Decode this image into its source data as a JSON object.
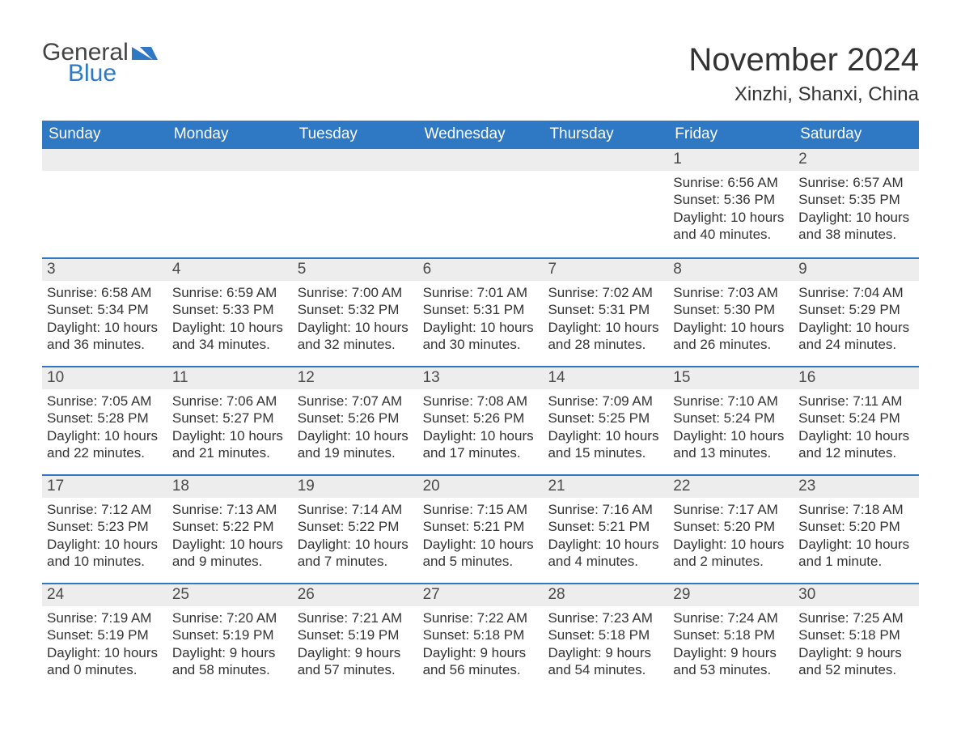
{
  "brand": {
    "general": "General",
    "blue": "Blue",
    "logo_color": "#2f78c4"
  },
  "title": "November 2024",
  "location": "Xinzhi, Shanxi, China",
  "colors": {
    "header_bg": "#2f78c4",
    "header_text": "#ffffff",
    "daynum_bg": "#ededed",
    "daynum_text": "#4a4a4a",
    "body_text": "#333333",
    "week_divider": "#2f78c4",
    "page_bg": "#ffffff"
  },
  "typography": {
    "title_fontsize": 40,
    "location_fontsize": 24,
    "weekday_fontsize": 19,
    "daynum_fontsize": 19,
    "body_fontsize": 17,
    "font_family": "Arial"
  },
  "layout": {
    "columns": 7,
    "rows": 5,
    "first_weekday_index": 5,
    "days_in_month": 30
  },
  "weekdays": [
    "Sunday",
    "Monday",
    "Tuesday",
    "Wednesday",
    "Thursday",
    "Friday",
    "Saturday"
  ],
  "days": [
    {
      "n": 1,
      "sunrise": "6:56 AM",
      "sunset": "5:36 PM",
      "daylight": "10 hours and 40 minutes."
    },
    {
      "n": 2,
      "sunrise": "6:57 AM",
      "sunset": "5:35 PM",
      "daylight": "10 hours and 38 minutes."
    },
    {
      "n": 3,
      "sunrise": "6:58 AM",
      "sunset": "5:34 PM",
      "daylight": "10 hours and 36 minutes."
    },
    {
      "n": 4,
      "sunrise": "6:59 AM",
      "sunset": "5:33 PM",
      "daylight": "10 hours and 34 minutes."
    },
    {
      "n": 5,
      "sunrise": "7:00 AM",
      "sunset": "5:32 PM",
      "daylight": "10 hours and 32 minutes."
    },
    {
      "n": 6,
      "sunrise": "7:01 AM",
      "sunset": "5:31 PM",
      "daylight": "10 hours and 30 minutes."
    },
    {
      "n": 7,
      "sunrise": "7:02 AM",
      "sunset": "5:31 PM",
      "daylight": "10 hours and 28 minutes."
    },
    {
      "n": 8,
      "sunrise": "7:03 AM",
      "sunset": "5:30 PM",
      "daylight": "10 hours and 26 minutes."
    },
    {
      "n": 9,
      "sunrise": "7:04 AM",
      "sunset": "5:29 PM",
      "daylight": "10 hours and 24 minutes."
    },
    {
      "n": 10,
      "sunrise": "7:05 AM",
      "sunset": "5:28 PM",
      "daylight": "10 hours and 22 minutes."
    },
    {
      "n": 11,
      "sunrise": "7:06 AM",
      "sunset": "5:27 PM",
      "daylight": "10 hours and 21 minutes."
    },
    {
      "n": 12,
      "sunrise": "7:07 AM",
      "sunset": "5:26 PM",
      "daylight": "10 hours and 19 minutes."
    },
    {
      "n": 13,
      "sunrise": "7:08 AM",
      "sunset": "5:26 PM",
      "daylight": "10 hours and 17 minutes."
    },
    {
      "n": 14,
      "sunrise": "7:09 AM",
      "sunset": "5:25 PM",
      "daylight": "10 hours and 15 minutes."
    },
    {
      "n": 15,
      "sunrise": "7:10 AM",
      "sunset": "5:24 PM",
      "daylight": "10 hours and 13 minutes."
    },
    {
      "n": 16,
      "sunrise": "7:11 AM",
      "sunset": "5:24 PM",
      "daylight": "10 hours and 12 minutes."
    },
    {
      "n": 17,
      "sunrise": "7:12 AM",
      "sunset": "5:23 PM",
      "daylight": "10 hours and 10 minutes."
    },
    {
      "n": 18,
      "sunrise": "7:13 AM",
      "sunset": "5:22 PM",
      "daylight": "10 hours and 9 minutes."
    },
    {
      "n": 19,
      "sunrise": "7:14 AM",
      "sunset": "5:22 PM",
      "daylight": "10 hours and 7 minutes."
    },
    {
      "n": 20,
      "sunrise": "7:15 AM",
      "sunset": "5:21 PM",
      "daylight": "10 hours and 5 minutes."
    },
    {
      "n": 21,
      "sunrise": "7:16 AM",
      "sunset": "5:21 PM",
      "daylight": "10 hours and 4 minutes."
    },
    {
      "n": 22,
      "sunrise": "7:17 AM",
      "sunset": "5:20 PM",
      "daylight": "10 hours and 2 minutes."
    },
    {
      "n": 23,
      "sunrise": "7:18 AM",
      "sunset": "5:20 PM",
      "daylight": "10 hours and 1 minute."
    },
    {
      "n": 24,
      "sunrise": "7:19 AM",
      "sunset": "5:19 PM",
      "daylight": "10 hours and 0 minutes."
    },
    {
      "n": 25,
      "sunrise": "7:20 AM",
      "sunset": "5:19 PM",
      "daylight": "9 hours and 58 minutes."
    },
    {
      "n": 26,
      "sunrise": "7:21 AM",
      "sunset": "5:19 PM",
      "daylight": "9 hours and 57 minutes."
    },
    {
      "n": 27,
      "sunrise": "7:22 AM",
      "sunset": "5:18 PM",
      "daylight": "9 hours and 56 minutes."
    },
    {
      "n": 28,
      "sunrise": "7:23 AM",
      "sunset": "5:18 PM",
      "daylight": "9 hours and 54 minutes."
    },
    {
      "n": 29,
      "sunrise": "7:24 AM",
      "sunset": "5:18 PM",
      "daylight": "9 hours and 53 minutes."
    },
    {
      "n": 30,
      "sunrise": "7:25 AM",
      "sunset": "5:18 PM",
      "daylight": "9 hours and 52 minutes."
    }
  ],
  "labels": {
    "sunrise": "Sunrise: ",
    "sunset": "Sunset: ",
    "daylight": "Daylight: "
  }
}
